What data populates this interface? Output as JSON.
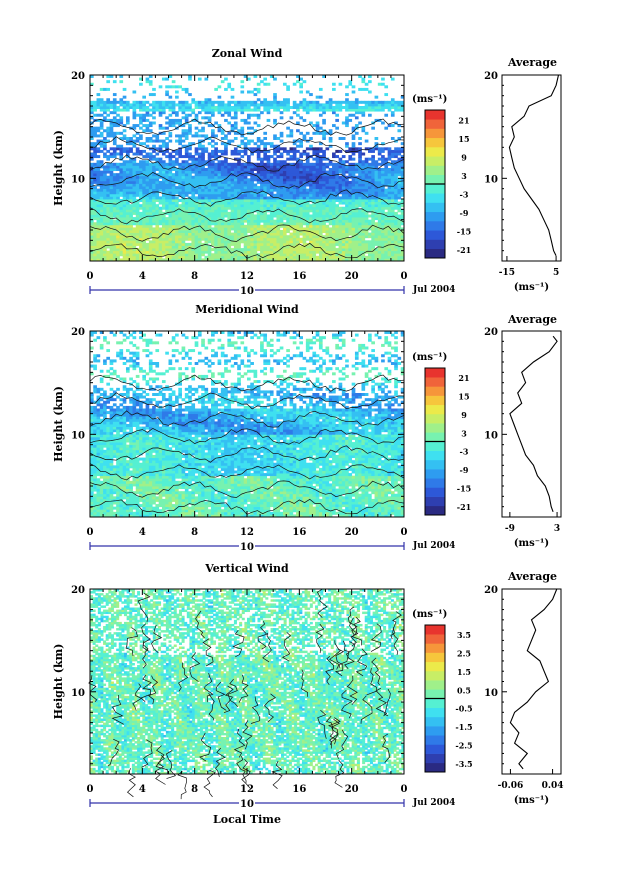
{
  "chart_data": [
    {
      "type": "heatmap",
      "title": "Zonal Wind",
      "xlabel": "",
      "ylabel": "Height (km)",
      "x_ticks": [
        "0",
        "4",
        "8",
        "12",
        "16",
        "20",
        "0"
      ],
      "y_ticks": [
        "10",
        "20"
      ],
      "xlim": [
        0,
        24
      ],
      "ylim": [
        2,
        20
      ],
      "date_label": "Jul 2004",
      "day_label": "10",
      "colorbar": {
        "unit": "(ms⁻¹)",
        "ticks": [
          "21",
          "15",
          "9",
          "3",
          "-3",
          "-9",
          "-15",
          "-21"
        ],
        "range": [
          -24,
          24
        ]
      },
      "profile": {
        "title": "Average",
        "xlabel": "(ms⁻¹)",
        "x_ticks": [
          "-15",
          "5"
        ],
        "y_ticks": [
          "10",
          "20"
        ],
        "xlim": [
          -17,
          7
        ],
        "heights": [
          2.5,
          3,
          4,
          5,
          6,
          7,
          8,
          9,
          10,
          11,
          12,
          13,
          14,
          15,
          16,
          17,
          18,
          19,
          20
        ],
        "values": [
          5,
          4,
          3,
          2,
          0,
          -2,
          -5,
          -8,
          -10,
          -12,
          -13,
          -14,
          -12,
          -13,
          -8,
          -6,
          3,
          5,
          6
        ]
      }
    },
    {
      "type": "heatmap",
      "title": "Meridional Wind",
      "xlabel": "",
      "ylabel": "Height (km)",
      "x_ticks": [
        "0",
        "4",
        "8",
        "12",
        "16",
        "20",
        "0"
      ],
      "y_ticks": [
        "10",
        "20"
      ],
      "xlim": [
        0,
        24
      ],
      "ylim": [
        2,
        20
      ],
      "date_label": "Jul 2004",
      "day_label": "10",
      "colorbar": {
        "unit": "(ms⁻¹)",
        "ticks": [
          "21",
          "15",
          "9",
          "3",
          "-3",
          "-9",
          "-15",
          "-21"
        ],
        "range": [
          -24,
          24
        ]
      },
      "profile": {
        "title": "Average",
        "xlabel": "(ms⁻¹)",
        "x_ticks": [
          "-9",
          "3"
        ],
        "y_ticks": [
          "10",
          "20"
        ],
        "xlim": [
          -11,
          4
        ],
        "heights": [
          2.5,
          3,
          4,
          5,
          6,
          7,
          8,
          9,
          10,
          11,
          12,
          13,
          14,
          15,
          16,
          17,
          18,
          19,
          19.5
        ],
        "values": [
          2,
          1.5,
          1,
          0,
          -2,
          -3,
          -5,
          -6,
          -7,
          -8,
          -9,
          -6,
          -7,
          -5,
          -6,
          -3,
          1,
          3,
          2
        ]
      }
    },
    {
      "type": "heatmap",
      "title": "Vertical Wind",
      "xlabel": "Local Time",
      "ylabel": "Height (km)",
      "x_ticks": [
        "0",
        "4",
        "8",
        "12",
        "16",
        "20",
        "0"
      ],
      "y_ticks": [
        "10",
        "20"
      ],
      "xlim": [
        0,
        24
      ],
      "ylim": [
        2,
        20
      ],
      "date_label": "Jul 2004",
      "day_label": "10",
      "colorbar": {
        "unit": "(ms⁻¹)",
        "ticks": [
          "3.5",
          "2.5",
          "1.5",
          "0.5",
          "-0.5",
          "-1.5",
          "-2.5",
          "-3.5"
        ],
        "range": [
          -4,
          4
        ]
      },
      "profile": {
        "title": "Average",
        "xlabel": "(ms⁻¹)",
        "x_ticks": [
          "-0.06",
          "0.04"
        ],
        "y_ticks": [
          "10",
          "20"
        ],
        "xlim": [
          -0.08,
          0.06
        ],
        "heights": [
          2.5,
          3,
          4,
          5,
          6,
          7,
          8,
          9,
          10,
          11,
          12,
          13,
          14,
          15,
          16,
          17,
          18,
          19,
          20
        ],
        "values": [
          -0.03,
          -0.04,
          -0.02,
          -0.05,
          -0.04,
          -0.06,
          -0.05,
          -0.02,
          0.0,
          0.03,
          0.02,
          0.01,
          -0.02,
          -0.01,
          0.0,
          -0.01,
          0.02,
          0.04,
          0.05
        ]
      }
    }
  ]
}
